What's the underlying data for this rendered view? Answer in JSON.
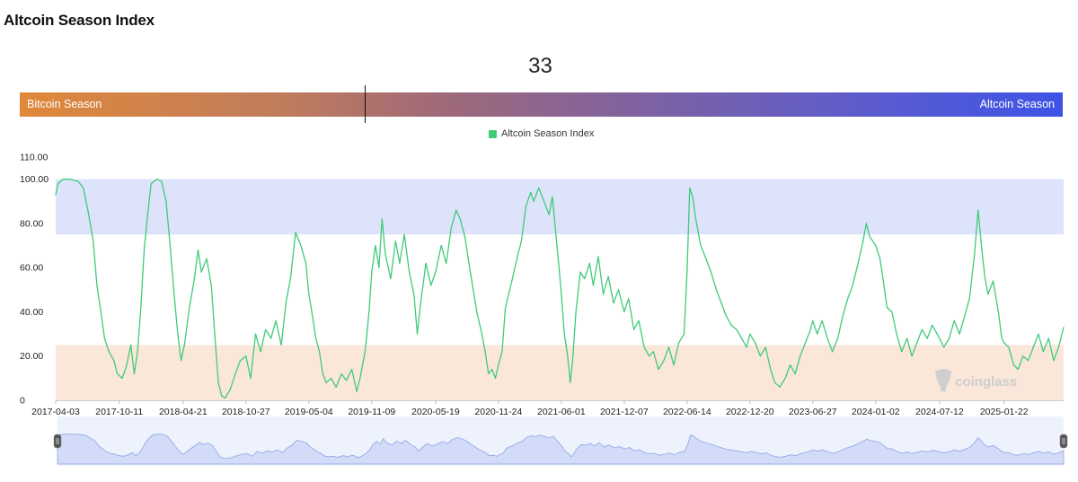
{
  "title": "Altcoin Season Index",
  "gauge": {
    "value": 33,
    "value_label": "33",
    "left_label": "Bitcoin Season",
    "right_label": "Altcoin Season",
    "max": 100
  },
  "watermark": "coinglass",
  "chart_data": {
    "type": "line",
    "legend": "Altcoin Season Index",
    "series": [
      {
        "name": "Altcoin Season Index",
        "color": "#3fcb78"
      }
    ],
    "xlim": [
      "2017-04-03",
      "2025-07-20"
    ],
    "x_tick_labels": [
      "2017-04-03",
      "2017-10-11",
      "2018-04-21",
      "2018-10-27",
      "2019-05-04",
      "2019-11-09",
      "2020-05-19",
      "2020-11-24",
      "2021-06-01",
      "2021-12-07",
      "2022-06-14",
      "2022-12-20",
      "2023-06-27",
      "2024-01-02",
      "2024-07-12",
      "2025-01-22"
    ],
    "ylim": [
      0,
      110
    ],
    "y_tick_labels": [
      "0",
      "20.00",
      "40.00",
      "60.00",
      "80.00",
      "100.00",
      "110.00"
    ],
    "y_ticks": [
      0,
      20,
      40,
      60,
      80,
      100,
      110
    ],
    "bands": [
      {
        "name": "altcoin-season-band",
        "from": 75,
        "to": 100,
        "color": "#dde3fa"
      },
      {
        "name": "bitcoin-season-band",
        "from": 0,
        "to": 25,
        "color": "#fbe7d9"
      }
    ],
    "points": [
      [
        "2017-04-03",
        93
      ],
      [
        "2017-04-10",
        98
      ],
      [
        "2017-04-25",
        100
      ],
      [
        "2017-05-15",
        100
      ],
      [
        "2017-06-10",
        99
      ],
      [
        "2017-06-25",
        96
      ],
      [
        "2017-07-10",
        85
      ],
      [
        "2017-07-25",
        72
      ],
      [
        "2017-08-05",
        52
      ],
      [
        "2017-08-15",
        42
      ],
      [
        "2017-08-28",
        28
      ],
      [
        "2017-09-10",
        22
      ],
      [
        "2017-09-25",
        18
      ],
      [
        "2017-10-05",
        12
      ],
      [
        "2017-10-20",
        10
      ],
      [
        "2017-11-01",
        15
      ],
      [
        "2017-11-15",
        25
      ],
      [
        "2017-11-25",
        12
      ],
      [
        "2017-12-05",
        22
      ],
      [
        "2017-12-15",
        42
      ],
      [
        "2017-12-25",
        68
      ],
      [
        "2018-01-05",
        85
      ],
      [
        "2018-01-15",
        98
      ],
      [
        "2018-02-01",
        100
      ],
      [
        "2018-02-15",
        99
      ],
      [
        "2018-03-01",
        90
      ],
      [
        "2018-03-10",
        75
      ],
      [
        "2018-03-25",
        48
      ],
      [
        "2018-04-05",
        30
      ],
      [
        "2018-04-15",
        18
      ],
      [
        "2018-04-25",
        25
      ],
      [
        "2018-05-10",
        42
      ],
      [
        "2018-05-25",
        55
      ],
      [
        "2018-06-05",
        68
      ],
      [
        "2018-06-15",
        58
      ],
      [
        "2018-07-01",
        64
      ],
      [
        "2018-07-15",
        52
      ],
      [
        "2018-07-25",
        30
      ],
      [
        "2018-08-05",
        8
      ],
      [
        "2018-08-15",
        2
      ],
      [
        "2018-08-25",
        1
      ],
      [
        "2018-09-10",
        5
      ],
      [
        "2018-09-25",
        12
      ],
      [
        "2018-10-10",
        18
      ],
      [
        "2018-10-27",
        20
      ],
      [
        "2018-11-10",
        10
      ],
      [
        "2018-11-25",
        30
      ],
      [
        "2018-12-10",
        22
      ],
      [
        "2018-12-25",
        32
      ],
      [
        "2019-01-10",
        28
      ],
      [
        "2019-01-25",
        36
      ],
      [
        "2019-02-10",
        25
      ],
      [
        "2019-02-25",
        45
      ],
      [
        "2019-03-10",
        55
      ],
      [
        "2019-03-25",
        76
      ],
      [
        "2019-04-10",
        70
      ],
      [
        "2019-04-25",
        62
      ],
      [
        "2019-05-04",
        48
      ],
      [
        "2019-05-15",
        38
      ],
      [
        "2019-05-25",
        28
      ],
      [
        "2019-06-05",
        22
      ],
      [
        "2019-06-15",
        12
      ],
      [
        "2019-06-25",
        8
      ],
      [
        "2019-07-10",
        10
      ],
      [
        "2019-07-25",
        6
      ],
      [
        "2019-08-10",
        12
      ],
      [
        "2019-08-25",
        9
      ],
      [
        "2019-09-10",
        14
      ],
      [
        "2019-09-25",
        4
      ],
      [
        "2019-10-05",
        10
      ],
      [
        "2019-10-20",
        22
      ],
      [
        "2019-11-01",
        40
      ],
      [
        "2019-11-09",
        58
      ],
      [
        "2019-11-20",
        70
      ],
      [
        "2019-12-01",
        60
      ],
      [
        "2019-12-10",
        82
      ],
      [
        "2019-12-20",
        66
      ],
      [
        "2020-01-05",
        55
      ],
      [
        "2020-01-20",
        72
      ],
      [
        "2020-02-01",
        62
      ],
      [
        "2020-02-15",
        75
      ],
      [
        "2020-03-01",
        58
      ],
      [
        "2020-03-15",
        48
      ],
      [
        "2020-03-25",
        30
      ],
      [
        "2020-04-05",
        45
      ],
      [
        "2020-04-20",
        62
      ],
      [
        "2020-05-05",
        52
      ],
      [
        "2020-05-19",
        58
      ],
      [
        "2020-06-05",
        70
      ],
      [
        "2020-06-20",
        62
      ],
      [
        "2020-07-05",
        78
      ],
      [
        "2020-07-20",
        86
      ],
      [
        "2020-08-01",
        82
      ],
      [
        "2020-08-15",
        74
      ],
      [
        "2020-08-25",
        64
      ],
      [
        "2020-09-05",
        54
      ],
      [
        "2020-09-20",
        40
      ],
      [
        "2020-10-05",
        30
      ],
      [
        "2020-10-15",
        22
      ],
      [
        "2020-10-25",
        12
      ],
      [
        "2020-11-05",
        14
      ],
      [
        "2020-11-15",
        10
      ],
      [
        "2020-11-24",
        16
      ],
      [
        "2020-12-05",
        22
      ],
      [
        "2020-12-15",
        42
      ],
      [
        "2021-01-05",
        55
      ],
      [
        "2021-01-20",
        65
      ],
      [
        "2021-02-01",
        72
      ],
      [
        "2021-02-15",
        88
      ],
      [
        "2021-03-01",
        94
      ],
      [
        "2021-03-10",
        90
      ],
      [
        "2021-03-25",
        96
      ],
      [
        "2021-04-05",
        92
      ],
      [
        "2021-04-15",
        88
      ],
      [
        "2021-04-25",
        84
      ],
      [
        "2021-05-05",
        92
      ],
      [
        "2021-05-15",
        76
      ],
      [
        "2021-05-25",
        60
      ],
      [
        "2021-06-01",
        48
      ],
      [
        "2021-06-10",
        30
      ],
      [
        "2021-06-20",
        20
      ],
      [
        "2021-06-28",
        8
      ],
      [
        "2021-07-05",
        18
      ],
      [
        "2021-07-15",
        40
      ],
      [
        "2021-07-28",
        58
      ],
      [
        "2021-08-10",
        55
      ],
      [
        "2021-08-25",
        62
      ],
      [
        "2021-09-05",
        52
      ],
      [
        "2021-09-20",
        65
      ],
      [
        "2021-10-05",
        48
      ],
      [
        "2021-10-20",
        56
      ],
      [
        "2021-11-05",
        44
      ],
      [
        "2021-11-20",
        50
      ],
      [
        "2021-12-07",
        40
      ],
      [
        "2021-12-20",
        46
      ],
      [
        "2022-01-05",
        32
      ],
      [
        "2022-01-20",
        36
      ],
      [
        "2022-02-05",
        24
      ],
      [
        "2022-02-20",
        20
      ],
      [
        "2022-03-05",
        22
      ],
      [
        "2022-03-20",
        14
      ],
      [
        "2022-04-05",
        18
      ],
      [
        "2022-04-20",
        24
      ],
      [
        "2022-05-05",
        16
      ],
      [
        "2022-05-20",
        26
      ],
      [
        "2022-06-05",
        30
      ],
      [
        "2022-06-14",
        58
      ],
      [
        "2022-06-22",
        96
      ],
      [
        "2022-07-01",
        92
      ],
      [
        "2022-07-10",
        82
      ],
      [
        "2022-07-25",
        70
      ],
      [
        "2022-08-10",
        64
      ],
      [
        "2022-08-25",
        58
      ],
      [
        "2022-09-10",
        50
      ],
      [
        "2022-09-25",
        44
      ],
      [
        "2022-10-10",
        38
      ],
      [
        "2022-10-25",
        34
      ],
      [
        "2022-11-10",
        32
      ],
      [
        "2022-11-25",
        28
      ],
      [
        "2022-12-10",
        24
      ],
      [
        "2022-12-20",
        30
      ],
      [
        "2023-01-05",
        26
      ],
      [
        "2023-01-20",
        20
      ],
      [
        "2023-02-05",
        24
      ],
      [
        "2023-02-20",
        14
      ],
      [
        "2023-03-05",
        8
      ],
      [
        "2023-03-20",
        6
      ],
      [
        "2023-04-05",
        10
      ],
      [
        "2023-04-20",
        16
      ],
      [
        "2023-05-05",
        12
      ],
      [
        "2023-05-20",
        20
      ],
      [
        "2023-06-05",
        26
      ],
      [
        "2023-06-20",
        32
      ],
      [
        "2023-06-27",
        36
      ],
      [
        "2023-07-10",
        30
      ],
      [
        "2023-07-25",
        36
      ],
      [
        "2023-08-10",
        28
      ],
      [
        "2023-08-25",
        22
      ],
      [
        "2023-09-10",
        28
      ],
      [
        "2023-09-25",
        38
      ],
      [
        "2023-10-10",
        46
      ],
      [
        "2023-10-25",
        52
      ],
      [
        "2023-11-10",
        62
      ],
      [
        "2023-11-25",
        72
      ],
      [
        "2023-12-05",
        80
      ],
      [
        "2023-12-15",
        74
      ],
      [
        "2024-01-02",
        70
      ],
      [
        "2024-01-15",
        64
      ],
      [
        "2024-01-25",
        54
      ],
      [
        "2024-02-05",
        42
      ],
      [
        "2024-02-20",
        40
      ],
      [
        "2024-03-05",
        30
      ],
      [
        "2024-03-20",
        22
      ],
      [
        "2024-04-05",
        28
      ],
      [
        "2024-04-20",
        20
      ],
      [
        "2024-05-05",
        26
      ],
      [
        "2024-05-20",
        32
      ],
      [
        "2024-06-05",
        28
      ],
      [
        "2024-06-20",
        34
      ],
      [
        "2024-07-05",
        30
      ],
      [
        "2024-07-12",
        28
      ],
      [
        "2024-07-25",
        24
      ],
      [
        "2024-08-10",
        28
      ],
      [
        "2024-08-25",
        36
      ],
      [
        "2024-09-10",
        30
      ],
      [
        "2024-09-25",
        38
      ],
      [
        "2024-10-10",
        46
      ],
      [
        "2024-10-25",
        66
      ],
      [
        "2024-11-05",
        86
      ],
      [
        "2024-11-15",
        70
      ],
      [
        "2024-11-25",
        56
      ],
      [
        "2024-12-05",
        48
      ],
      [
        "2024-12-20",
        54
      ],
      [
        "2025-01-05",
        40
      ],
      [
        "2025-01-15",
        28
      ],
      [
        "2025-01-22",
        26
      ],
      [
        "2025-02-05",
        24
      ],
      [
        "2025-02-20",
        16
      ],
      [
        "2025-03-05",
        14
      ],
      [
        "2025-03-20",
        20
      ],
      [
        "2025-04-05",
        18
      ],
      [
        "2025-04-20",
        24
      ],
      [
        "2025-05-05",
        30
      ],
      [
        "2025-05-20",
        22
      ],
      [
        "2025-06-05",
        28
      ],
      [
        "2025-06-20",
        18
      ],
      [
        "2025-07-05",
        24
      ],
      [
        "2025-07-20",
        33
      ]
    ]
  }
}
